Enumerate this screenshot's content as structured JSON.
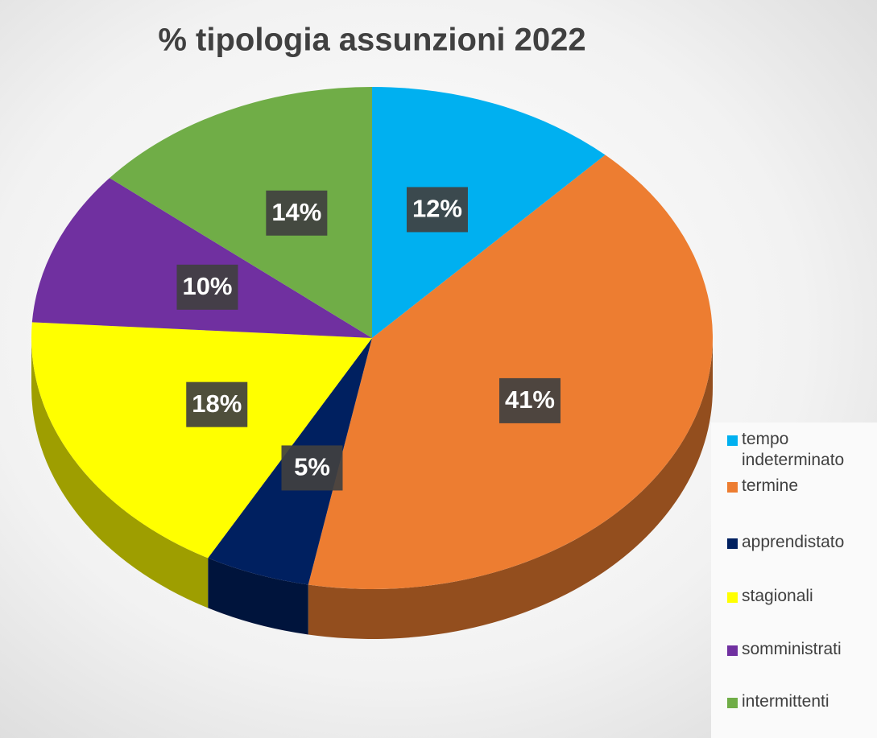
{
  "chart_data": {
    "type": "pie",
    "title": "% tipologia assunzioni 2022",
    "categories": [
      "tempo indeterminato",
      "termine",
      "apprendistato",
      "stagionali",
      "somministrati",
      "intermittenti"
    ],
    "values": [
      12,
      41,
      5,
      18,
      10,
      14
    ],
    "value_labels": [
      "12%",
      "41%",
      "5%",
      "18%",
      "10%",
      "14%"
    ],
    "colors": [
      "#00b0f0",
      "#ed7d31",
      "#002060",
      "#ffff00",
      "#7030a0",
      "#70ad47"
    ],
    "legend": "right"
  }
}
